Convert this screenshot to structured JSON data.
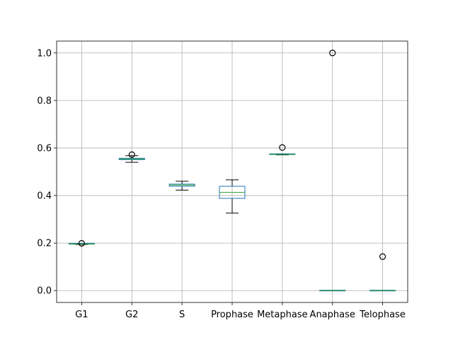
{
  "chart_data": {
    "type": "box",
    "title": "",
    "xlabel": "",
    "ylabel": "",
    "ylim": [
      -0.05,
      1.05
    ],
    "yticks": [
      0.0,
      0.2,
      0.4,
      0.6,
      0.8,
      1.0
    ],
    "ytick_labels": [
      "0.0",
      "0.2",
      "0.4",
      "0.6",
      "0.8",
      "1.0"
    ],
    "grid": true,
    "categories": [
      "G1",
      "G2",
      "S",
      "Prophase",
      "Metaphase",
      "Anaphase",
      "Telophase"
    ],
    "boxes": [
      {
        "whisker_low": 0.194,
        "q1": 0.195,
        "median": 0.196,
        "q3": 0.197,
        "whisker_high": 0.198,
        "outliers": [
          0.199
        ]
      },
      {
        "whisker_low": 0.54,
        "q1": 0.551,
        "median": 0.554,
        "q3": 0.557,
        "whisker_high": 0.568,
        "outliers": [
          0.572
        ]
      },
      {
        "whisker_low": 0.423,
        "q1": 0.439,
        "median": 0.444,
        "q3": 0.448,
        "whisker_high": 0.46,
        "outliers": []
      },
      {
        "whisker_low": 0.326,
        "q1": 0.388,
        "median": 0.413,
        "q3": 0.439,
        "whisker_high": 0.466,
        "outliers": []
      },
      {
        "whisker_low": 0.571,
        "q1": 0.572,
        "median": 0.573,
        "q3": 0.574,
        "whisker_high": 0.575,
        "outliers": [
          0.602
        ]
      },
      {
        "whisker_low": 0.0,
        "q1": 0.0,
        "median": 0.0,
        "q3": 0.0,
        "whisker_high": 0.0,
        "outliers": [
          1.0
        ]
      },
      {
        "whisker_low": 0.0,
        "q1": 0.0,
        "median": 0.0,
        "q3": 0.0,
        "whisker_high": 0.0,
        "outliers": [
          0.143
        ]
      }
    ],
    "colors": {
      "box": "#1f77b4",
      "median": "#2ca02c",
      "whisker": "#000000",
      "outlier": "#000000",
      "grid": "#b0b0b0",
      "axes": "#000000"
    }
  }
}
